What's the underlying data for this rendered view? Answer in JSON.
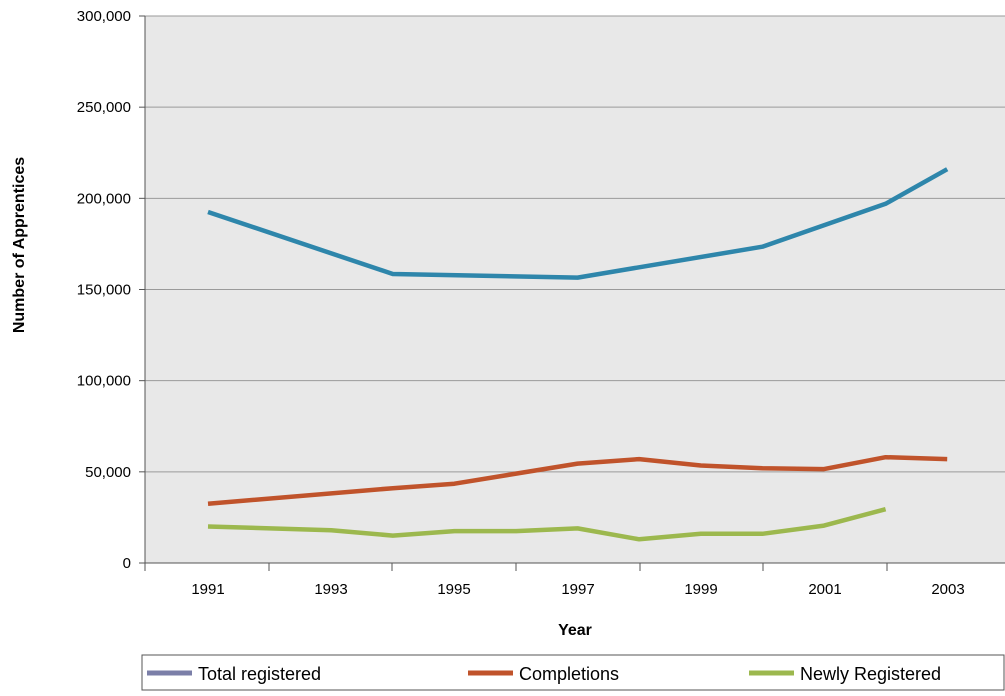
{
  "chart_data": {
    "type": "line",
    "title": "",
    "xlabel": "Year",
    "ylabel": "Number of Apprentices",
    "x_tick_labels": [
      "1991",
      "1993",
      "1995",
      "1997",
      "1999",
      "2001",
      "2003"
    ],
    "y_tick_labels": [
      "0",
      "50,000",
      "100,000",
      "150,000",
      "200,000",
      "250,000",
      "300,000"
    ],
    "ylim": [
      0,
      300000
    ],
    "grid": "horizontal",
    "legend_position": "bottom",
    "plot_background": "#e8e8e8",
    "x": [
      1991,
      1992,
      1993,
      1994,
      1995,
      1996,
      1997,
      1998,
      1999,
      2000,
      2001,
      2002,
      2003
    ],
    "series": [
      {
        "name": "Total registered",
        "color": "#2e86ab",
        "legend_color": "#7b7fa8",
        "values": [
          192500,
          null,
          null,
          158500,
          null,
          null,
          156500,
          null,
          null,
          173500,
          null,
          197000,
          216000
        ]
      },
      {
        "name": "Completions",
        "color": "#c0532b",
        "values": [
          32500,
          null,
          null,
          41000,
          43500,
          null,
          54500,
          57000,
          53500,
          52000,
          51500,
          58000,
          57000
        ]
      },
      {
        "name": "Newly Registered",
        "color": "#9cb84e",
        "values": [
          20000,
          null,
          18000,
          15000,
          17500,
          17500,
          19000,
          13000,
          16000,
          16000,
          20500,
          29500,
          null
        ]
      }
    ]
  }
}
